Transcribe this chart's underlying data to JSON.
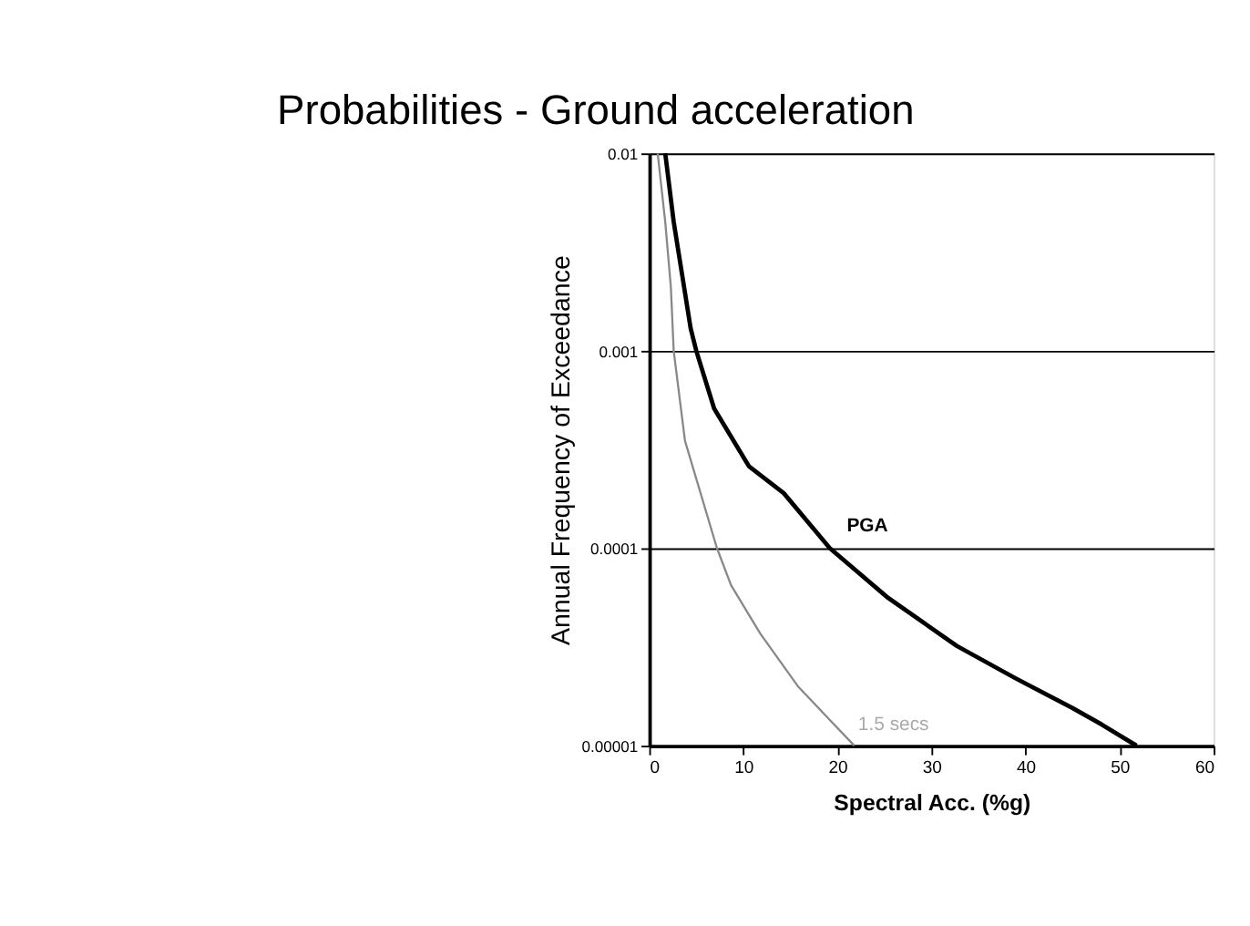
{
  "chart_data": {
    "type": "line",
    "title": "Probabilities - Ground acceleration",
    "xlabel": "Spectral Acc. (%g)",
    "ylabel": "Annual Frequency of Exceedance",
    "log": "y",
    "xlim": [
      0,
      60
    ],
    "xticks": [
      0,
      10,
      20,
      30,
      40,
      50,
      60
    ],
    "ylim": [
      1e-05,
      0.01
    ],
    "yticks": [
      {
        "value": 1e-05,
        "label": "0.00001"
      },
      0.0001,
      0.001,
      0.01
    ],
    "grid": "y",
    "marker": "none",
    "line_style": "solid",
    "series": [
      {
        "name": "PGA",
        "color": "#000000",
        "x": [
          1.7,
          2.6,
          4.4,
          5.0,
          6.9,
          10.6,
          14.3,
          19.2,
          25.4,
          32.7,
          38.9,
          45,
          48.1,
          51.8
        ],
        "values": [
          0.01,
          0.0045,
          0.0013,
          0.001,
          0.00051,
          0.00026,
          0.00019,
          0.0001,
          5.6e-05,
          3.2e-05,
          2.2e-05,
          1.55e-05,
          1.28e-05,
          1e-05
        ]
      },
      {
        "name": "1.5 secs",
        "color": "#888888",
        "x": [
          0.9,
          1.7,
          2.3,
          2.6,
          3.8,
          7.2,
          8.7,
          11.8,
          15.8,
          19.2,
          21.8
        ],
        "values": [
          0.01,
          0.0045,
          0.0021,
          0.001,
          0.00035,
          0.0001,
          6.5e-05,
          3.7e-05,
          2e-05,
          1.35e-05,
          1e-05
        ]
      }
    ]
  }
}
